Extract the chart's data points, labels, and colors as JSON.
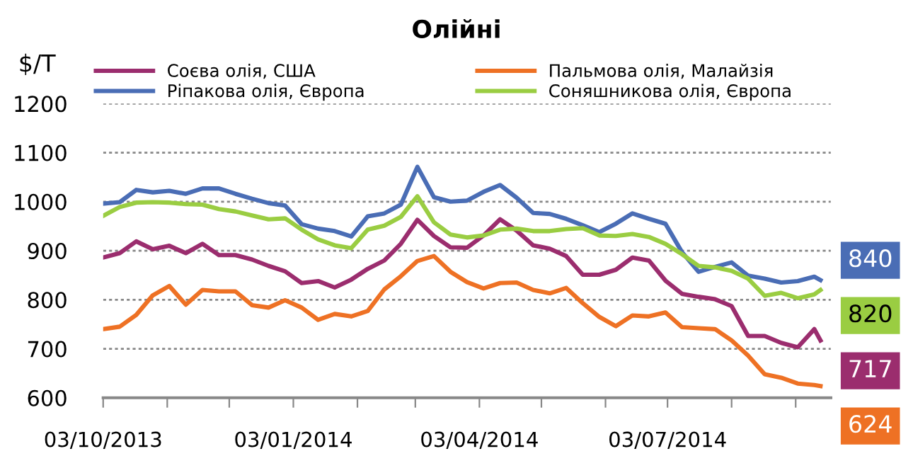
{
  "chart_data": {
    "type": "line",
    "title": "Олійні",
    "ylabel": "$/T",
    "x": [
      "2013-10-03",
      "2013-10-11",
      "2013-10-19",
      "2013-10-27",
      "2013-11-04",
      "2013-11-12",
      "2013-11-20",
      "2013-11-28",
      "2013-12-06",
      "2013-12-14",
      "2013-12-22",
      "2013-12-30",
      "2014-01-07",
      "2014-01-15",
      "2014-01-23",
      "2014-01-31",
      "2014-02-08",
      "2014-02-16",
      "2014-02-24",
      "2014-03-04",
      "2014-03-12",
      "2014-03-20",
      "2014-03-28",
      "2014-04-05",
      "2014-04-13",
      "2014-04-21",
      "2014-04-29",
      "2014-05-07",
      "2014-05-15",
      "2014-05-23",
      "2014-05-31",
      "2014-06-08",
      "2014-06-16",
      "2014-06-24",
      "2014-07-02",
      "2014-07-10",
      "2014-07-18",
      "2014-07-26",
      "2014-08-03",
      "2014-08-11",
      "2014-08-19",
      "2014-08-27",
      "2014-09-04",
      "2014-09-12",
      "2014-09-15"
    ],
    "series": [
      {
        "name": "Соєва олія, США",
        "color": "#9b2d6e",
        "values": [
          886,
          895,
          919,
          903,
          910,
          895,
          914,
          891,
          891,
          882,
          869,
          858,
          834,
          838,
          825,
          841,
          863,
          880,
          914,
          963,
          930,
          907,
          906,
          931,
          964,
          941,
          911,
          904,
          889,
          851,
          851,
          861,
          886,
          880,
          839,
          812,
          806,
          801,
          787,
          726,
          726,
          712,
          703,
          740,
          717
        ],
        "value_labels": [
          null,
          null,
          null,
          null,
          null,
          null,
          null,
          null,
          null,
          null,
          null,
          null,
          null,
          null,
          null,
          null,
          null,
          null,
          null,
          null,
          null,
          null,
          null,
          null,
          null,
          null,
          null,
          null,
          null,
          null,
          null,
          null,
          null,
          null,
          null,
          null,
          null,
          null,
          null,
          null,
          null,
          null,
          null,
          null,
          "717"
        ]
      },
      {
        "name": "Пальмова олія, Малайзія",
        "color": "#ee7124",
        "values": [
          740,
          745,
          769,
          809,
          828,
          790,
          820,
          817,
          817,
          789,
          784,
          799,
          784,
          759,
          771,
          766,
          777,
          821,
          848,
          879,
          889,
          857,
          836,
          823,
          834,
          835,
          820,
          813,
          824,
          793,
          765,
          746,
          768,
          766,
          774,
          744,
          742,
          740,
          717,
          686,
          648,
          641,
          629,
          626,
          624
        ],
        "value_labels": [
          null,
          null,
          null,
          null,
          null,
          null,
          null,
          null,
          null,
          null,
          null,
          null,
          null,
          null,
          null,
          null,
          null,
          null,
          null,
          null,
          null,
          null,
          null,
          null,
          null,
          null,
          null,
          null,
          null,
          null,
          null,
          null,
          null,
          null,
          null,
          null,
          null,
          null,
          null,
          null,
          null,
          null,
          null,
          null,
          "624"
        ]
      },
      {
        "name": "Ріпакова олія, Європа",
        "color": "#4a6db5",
        "values": [
          996,
          999,
          1024,
          1019,
          1022,
          1016,
          1027,
          1027,
          1016,
          1006,
          997,
          992,
          954,
          945,
          940,
          929,
          970,
          976,
          994,
          1071,
          1009,
          1000,
          1002,
          1020,
          1034,
          1008,
          977,
          975,
          965,
          952,
          938,
          955,
          976,
          965,
          955,
          897,
          857,
          867,
          876,
          849,
          843,
          835,
          838,
          847,
          840
        ],
        "value_labels": [
          null,
          null,
          null,
          null,
          null,
          null,
          null,
          null,
          null,
          null,
          null,
          null,
          null,
          null,
          null,
          null,
          null,
          null,
          null,
          null,
          null,
          null,
          null,
          null,
          null,
          null,
          null,
          null,
          null,
          null,
          null,
          null,
          null,
          null,
          null,
          null,
          null,
          null,
          null,
          null,
          null,
          null,
          null,
          null,
          "840"
        ]
      },
      {
        "name": "Соняшникова олія, Європа",
        "color": "#9acd42",
        "values": [
          971,
          989,
          998,
          999,
          998,
          995,
          994,
          985,
          980,
          972,
          964,
          966,
          943,
          923,
          911,
          905,
          943,
          951,
          969,
          1011,
          958,
          933,
          927,
          931,
          943,
          945,
          940,
          940,
          944,
          946,
          931,
          930,
          934,
          928,
          914,
          893,
          869,
          866,
          859,
          843,
          808,
          814,
          803,
          811,
          820
        ],
        "value_labels": [
          null,
          null,
          null,
          null,
          null,
          null,
          null,
          null,
          null,
          null,
          null,
          null,
          null,
          null,
          null,
          null,
          null,
          null,
          null,
          null,
          null,
          null,
          null,
          null,
          null,
          null,
          null,
          null,
          null,
          null,
          null,
          null,
          null,
          null,
          null,
          null,
          null,
          null,
          null,
          null,
          null,
          null,
          null,
          null,
          "820"
        ]
      }
    ],
    "xlim": [
      "2013-10-03",
      "2014-09-20"
    ],
    "xticks": [
      {
        "value": "2013-10-03",
        "label": "03/10/2013"
      },
      {
        "value": "2013-11-03",
        "label": null
      },
      {
        "value": "2013-12-03",
        "label": null
      },
      {
        "value": "2014-01-03",
        "label": "03/01/2014"
      },
      {
        "value": "2014-02-03",
        "label": null
      },
      {
        "value": "2014-03-03",
        "label": null
      },
      {
        "value": "2014-04-03",
        "label": "03/04/2014"
      },
      {
        "value": "2014-05-03",
        "label": null
      },
      {
        "value": "2014-06-03",
        "label": null
      },
      {
        "value": "2014-07-03",
        "label": "03/07/2014"
      },
      {
        "value": "2014-08-03",
        "label": null
      },
      {
        "value": "2014-09-03",
        "label": null
      }
    ],
    "ylim": [
      600,
      1200
    ],
    "yticks": [
      600,
      700,
      800,
      900,
      1000,
      1100,
      1200
    ],
    "grid": "y",
    "legend": "top",
    "line_style": "solid",
    "marker": "none"
  }
}
